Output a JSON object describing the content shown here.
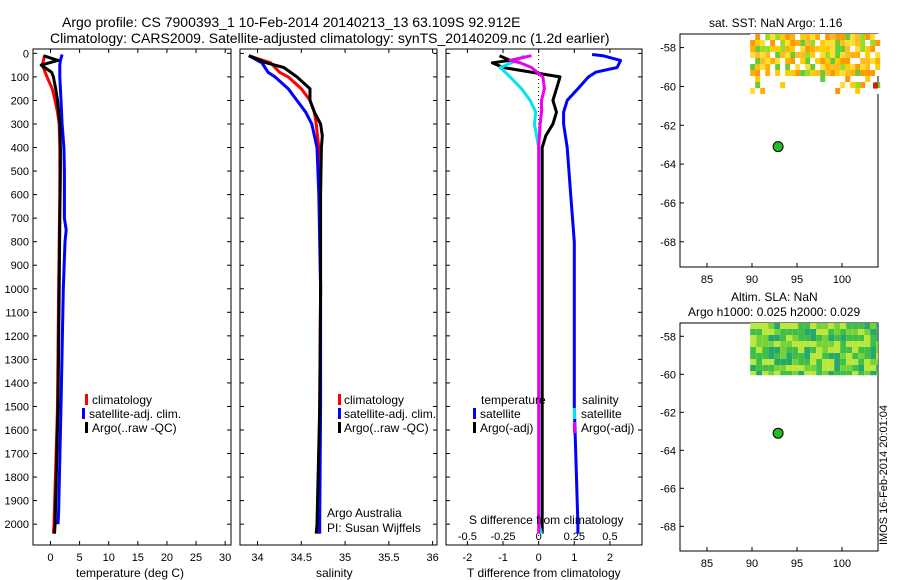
{
  "header": {
    "line1": "Argo profile: CS 7900393_1 10-Feb-2014 20140213_13 63.109S 92.912E",
    "line2": "Climatology: CARS2009. Satellite-adjusted climatology: synTS_20140209.nc (1.2d earlier)"
  },
  "credit": "IMOS 16-Feb-2014 20:01:04",
  "colors": {
    "climatology": "#ff0000",
    "satellite": "#0000ff",
    "argo": "#000000",
    "sal_satellite": "#00e5ee",
    "sal_argo": "#ee00ee",
    "marker": "#22bb22"
  },
  "chart_data": [
    {
      "type": "line",
      "id": "temperature",
      "xlabel": "temperature (deg C)",
      "ylabel": "depth",
      "xlim": [
        -3,
        31
      ],
      "ylim": [
        2080,
        -10
      ],
      "xticks": [
        0,
        5,
        10,
        15,
        20,
        25,
        30
      ],
      "yticks": [
        0,
        100,
        200,
        300,
        400,
        500,
        600,
        700,
        800,
        900,
        1000,
        1100,
        1200,
        1300,
        1400,
        1500,
        1600,
        1700,
        1800,
        1900,
        2000
      ],
      "legend": [
        "climatology",
        "satellite-adj. clim.",
        "Argo(..raw -QC)"
      ],
      "series": [
        {
          "name": "climatology",
          "depth": [
            10,
            50,
            100,
            150,
            200,
            250,
            300,
            400,
            600,
            800,
            1000,
            1500,
            2000,
            2040
          ],
          "values": [
            -1.0,
            -1.4,
            -0.6,
            0.3,
            0.8,
            1.2,
            1.5,
            1.6,
            1.6,
            1.5,
            1.4,
            1.2,
            0.6,
            0.5
          ]
        },
        {
          "name": "satellite-adj. clim.",
          "depth": [
            5,
            30,
            50,
            100,
            200,
            300,
            400,
            500,
            600,
            700,
            750,
            800,
            1000,
            1500,
            1950,
            2000
          ],
          "values": [
            2.0,
            1.7,
            1.6,
            1.6,
            1.8,
            2.0,
            2.3,
            2.4,
            2.4,
            2.4,
            2.7,
            2.5,
            2.2,
            1.8,
            1.4,
            1.3
          ]
        },
        {
          "name": "Argo(..raw -QC)",
          "depth": [
            10,
            30,
            50,
            80,
            100,
            150,
            200,
            300,
            400,
            500,
            700,
            1000,
            1500,
            2000,
            2040
          ],
          "values": [
            -1.2,
            1.3,
            -1.6,
            0.2,
            0.5,
            0.9,
            1.2,
            1.6,
            1.7,
            1.7,
            1.6,
            1.5,
            1.3,
            0.8,
            0.7
          ]
        }
      ]
    },
    {
      "type": "line",
      "id": "salinity",
      "xlabel": "salinity",
      "ylabel": "depth",
      "xlim": [
        33.8,
        36.05
      ],
      "ylim": [
        2080,
        -10
      ],
      "xticks": [
        34,
        34.5,
        35,
        35.5,
        36
      ],
      "xticklabels": [
        "34",
        "34.5",
        "35",
        "35.5",
        "36"
      ],
      "legend": [
        "climatology",
        "satellite-adj. clim.",
        "Argo(..raw -QC)"
      ],
      "annotation": [
        "Argo Australia",
        "PI: Susan Wijffels"
      ],
      "series": [
        {
          "name": "climatology",
          "depth": [
            10,
            40,
            80,
            100,
            150,
            200,
            250,
            300,
            400,
            600,
            1000,
            1500,
            2000,
            2040
          ],
          "values": [
            33.9,
            34.15,
            34.25,
            34.35,
            34.5,
            34.6,
            34.65,
            34.67,
            34.7,
            34.71,
            34.72,
            34.71,
            34.7,
            34.7
          ]
        },
        {
          "name": "satellite-adj. clim.",
          "depth": [
            10,
            40,
            80,
            100,
            150,
            200,
            250,
            300,
            400,
            600,
            1000,
            1500,
            2000,
            2040
          ],
          "values": [
            33.9,
            34.05,
            34.12,
            34.2,
            34.35,
            34.45,
            34.55,
            34.62,
            34.68,
            34.7,
            34.72,
            34.72,
            34.71,
            34.71
          ]
        },
        {
          "name": "Argo(..raw -QC)",
          "depth": [
            10,
            40,
            60,
            100,
            150,
            200,
            250,
            300,
            350,
            400,
            600,
            1000,
            1500,
            2000,
            2040
          ],
          "values": [
            33.9,
            34.1,
            34.3,
            34.45,
            34.6,
            34.6,
            34.65,
            34.72,
            34.74,
            34.73,
            34.72,
            34.72,
            34.71,
            34.68,
            34.67
          ]
        }
      ]
    },
    {
      "type": "line",
      "id": "differences",
      "xlabel": "T difference from climatology",
      "x2label": "S difference from climatology",
      "xlim": [
        -2.6,
        2.9
      ],
      "ylim": [
        2080,
        -10
      ],
      "xticks": [
        -2,
        -1,
        0,
        1,
        2
      ],
      "x2ticks": [
        -0.5,
        -0.25,
        0,
        0.25,
        0.5
      ],
      "legend_titles": {
        "temperature": "temperature",
        "salinity": "salinity"
      },
      "legend_items": {
        "temp_satellite": "satellite",
        "temp_argo": "Argo(-adj)",
        "sal_satellite": "satellite",
        "sal_argo": "Argo(-adj)"
      },
      "series": [
        {
          "name": "T satellite",
          "depth": [
            5,
            10,
            30,
            60,
            80,
            100,
            150,
            200,
            250,
            300,
            400,
            600,
            800,
            1000,
            1500,
            2000,
            2040
          ],
          "values": [
            1.5,
            1.8,
            2.3,
            2.2,
            1.6,
            1.4,
            1.1,
            0.8,
            0.7,
            0.7,
            0.8,
            0.9,
            1.0,
            1.0,
            1.0,
            1.1,
            1.1
          ]
        },
        {
          "name": "T Argo(-adj)",
          "depth": [
            10,
            30,
            40,
            60,
            100,
            150,
            200,
            250,
            300,
            350,
            400,
            500,
            700,
            1000,
            1500,
            2000,
            2040
          ],
          "values": [
            -1.1,
            -0.8,
            -1.3,
            -1.0,
            0.6,
            0.5,
            0.4,
            0.5,
            0.4,
            0.2,
            0.1,
            0.1,
            0.1,
            0.1,
            0.1,
            0.1,
            0.1
          ]
        },
        {
          "name": "S satellite",
          "depth": [
            10,
            30,
            60,
            100,
            150,
            200,
            250,
            300,
            400,
            500,
            600,
            700,
            1000,
            1500,
            2000,
            2040
          ],
          "values": [
            -0.1,
            -0.15,
            -0.27,
            -0.2,
            -0.12,
            -0.06,
            -0.02,
            -0.03,
            0.0,
            0.0,
            0.0,
            0.0,
            0.0,
            0.0,
            0.0,
            0.02
          ]
        },
        {
          "name": "S Argo(-adj)",
          "depth": [
            10,
            30,
            40,
            60,
            100,
            150,
            200,
            250,
            300,
            400,
            600,
            1000,
            1500,
            2000,
            2040
          ],
          "values": [
            -0.05,
            -0.2,
            -0.13,
            -0.05,
            0.03,
            0.04,
            0.02,
            0.02,
            0.01,
            0.0,
            0.0,
            0.0,
            0.0,
            0.0,
            0.0
          ]
        }
      ]
    }
  ],
  "maps": {
    "sst": {
      "title": "sat. SST: NaN Argo: 1.16",
      "xticks": [
        85,
        90,
        95,
        100
      ],
      "yticks": [
        -58,
        -60,
        -62,
        -64,
        -66,
        -68
      ],
      "xlim": [
        82,
        104
      ],
      "ylim": [
        -69.3,
        -57.3
      ],
      "argo_position": {
        "lon": 92.9,
        "lat": -63.1
      }
    },
    "sla": {
      "title1": "Altim. SLA: NaN",
      "title2": "Argo h1000: 0.025 h2000: 0.029",
      "xticks": [
        85,
        90,
        95,
        100
      ],
      "yticks": [
        -58,
        -60,
        -62,
        -64,
        -66,
        -68
      ],
      "xlim": [
        82,
        104
      ],
      "ylim": [
        -69.3,
        -57.3
      ],
      "argo_position": {
        "lon": 92.9,
        "lat": -63.1
      }
    }
  }
}
